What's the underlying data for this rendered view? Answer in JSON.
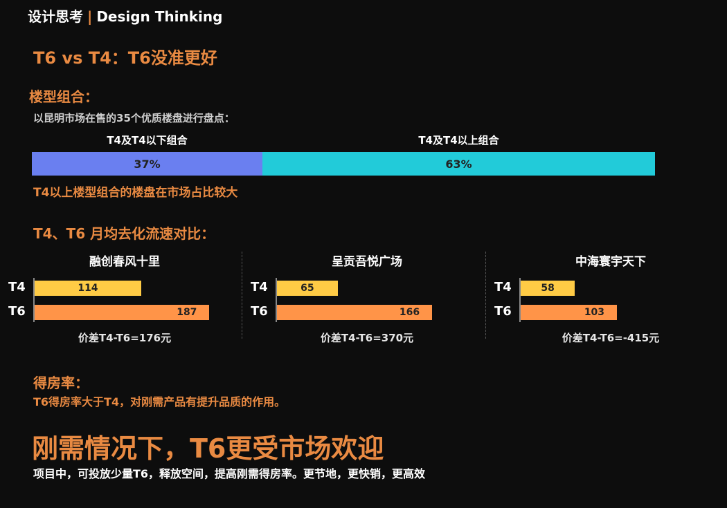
{
  "header": {
    "cn": "设计思考",
    "sep": "|",
    "en": "Design Thinking"
  },
  "title": "T6 vs T4：T6没准更好",
  "section1": {
    "heading": "楼型组合：",
    "note": "以昆明市场在售的35个优质楼盘进行盘点：",
    "conclusion": "T4以上楼型组合的楼盘在市场占比较大"
  },
  "section2": {
    "heading": "T4、T6 月均去化流速对比："
  },
  "section3": {
    "heading": "得房率：",
    "text": "T6得房率大于T4，对刚需产品有提升品质的作用。"
  },
  "headline": "刚需情况下，T6更受市场欢迎",
  "footer": "项目中，可投放少量T6，释放空间，提高刚需得房率。更节地，更快销，更高效",
  "colors": {
    "accent": "#e98a42",
    "stack_a": "#6a7ff0",
    "stack_b": "#22cbd9",
    "t4": "#ffcb45",
    "t6": "#ff9448"
  },
  "chart_data": [
    {
      "type": "bar",
      "stacked": true,
      "orientation": "horizontal",
      "series": [
        {
          "name": "T4及T4以下组合",
          "value": 37,
          "label": "37%"
        },
        {
          "name": "T4及T4以上组合",
          "value": 63,
          "label": "63%"
        }
      ]
    },
    {
      "type": "bar",
      "orientation": "horizontal",
      "categories": [
        "T4",
        "T6"
      ],
      "xlim": [
        0,
        200
      ],
      "panels": [
        {
          "title": "融创春风十里",
          "values": [
            114,
            187
          ],
          "labels": [
            "114",
            "187"
          ],
          "note": "价差T4-T6=176元"
        },
        {
          "title": "呈贡吾悦广场",
          "values": [
            65,
            166
          ],
          "labels": [
            "65",
            "166"
          ],
          "note": "价差T4-T6=370元"
        },
        {
          "title": "中海寰宇天下",
          "values": [
            58,
            103
          ],
          "labels": [
            "58",
            "103"
          ],
          "note": "价差T4-T6=-415元"
        }
      ]
    }
  ]
}
